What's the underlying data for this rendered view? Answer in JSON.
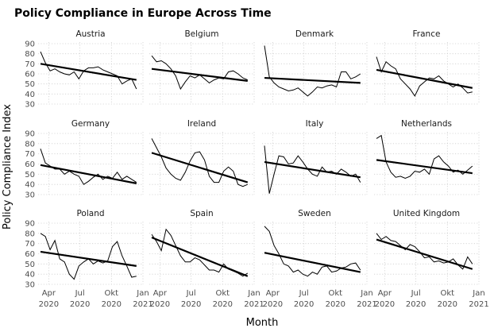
{
  "chart_data": {
    "type": "line",
    "title": "Policy Compliance in Europe Across Time",
    "xlabel": "Month",
    "ylabel": "Policy Compliance Index",
    "ylim": [
      30,
      90
    ],
    "yticks": [
      30,
      40,
      50,
      60,
      70,
      80,
      90
    ],
    "x_domain": [
      "2020-03-01",
      "2021-01-01"
    ],
    "xticks": [
      {
        "date": "2020-04-01",
        "label": [
          "Apr",
          "2020"
        ]
      },
      {
        "date": "2020-07-01",
        "label": [
          "Jul",
          "2020"
        ]
      },
      {
        "date": "2020-10-01",
        "label": [
          "Okt",
          "2020"
        ]
      },
      {
        "date": "2021-01-01",
        "label": [
          "Jan",
          "2021"
        ]
      }
    ],
    "grid": true,
    "x": [
      "2020-03-08",
      "2020-03-22",
      "2020-04-05",
      "2020-04-19",
      "2020-05-03",
      "2020-05-17",
      "2020-05-31",
      "2020-06-14",
      "2020-06-28",
      "2020-07-12",
      "2020-07-26",
      "2020-08-09",
      "2020-08-23",
      "2020-09-06",
      "2020-09-20",
      "2020-10-04",
      "2020-10-18",
      "2020-11-01",
      "2020-11-15",
      "2020-11-29",
      "2020-12-13"
    ],
    "series": [
      {
        "name": "Austria",
        "values": [
          82,
          71,
          63,
          65,
          62,
          60,
          59,
          62,
          55,
          63,
          66,
          66,
          67,
          64,
          62,
          60,
          58,
          50,
          53,
          55,
          45
        ],
        "trend": [
          70,
          54
        ]
      },
      {
        "name": "Belgium",
        "values": [
          78,
          72,
          73,
          70,
          65,
          58,
          45,
          52,
          58,
          56,
          59,
          55,
          51,
          54,
          56,
          55,
          62,
          63,
          60,
          56,
          54
        ],
        "trend": [
          65,
          53
        ]
      },
      {
        "name": "Denmark",
        "values": [
          88,
          57,
          51,
          47,
          45,
          43,
          44,
          46,
          42,
          38,
          42,
          47,
          46,
          48,
          49,
          47,
          62,
          62,
          55,
          57,
          60
        ],
        "trend": [
          56,
          51
        ]
      },
      {
        "name": "France",
        "values": [
          77,
          62,
          72,
          68,
          65,
          55,
          50,
          45,
          38,
          48,
          52,
          56,
          55,
          58,
          53,
          50,
          47,
          50,
          46,
          41,
          42
        ],
        "trend": [
          64,
          46
        ]
      },
      {
        "name": "Germany",
        "values": [
          75,
          61,
          58,
          55,
          55,
          50,
          53,
          50,
          48,
          40,
          43,
          47,
          50,
          45,
          48,
          46,
          52,
          45,
          48,
          45,
          42
        ],
        "trend": [
          59,
          41
        ]
      },
      {
        "name": "Ireland",
        "values": [
          85,
          76,
          67,
          56,
          50,
          46,
          44,
          52,
          63,
          71,
          72,
          64,
          48,
          42,
          42,
          53,
          57,
          53,
          40,
          38,
          40
        ],
        "trend": [
          71,
          42
        ]
      },
      {
        "name": "Italy",
        "values": [
          78,
          31,
          50,
          68,
          67,
          60,
          61,
          68,
          62,
          55,
          50,
          48,
          57,
          52,
          53,
          50,
          55,
          52,
          48,
          50,
          42
        ],
        "trend": [
          62,
          47
        ]
      },
      {
        "name": "Netherlands",
        "values": [
          85,
          88,
          62,
          52,
          47,
          48,
          46,
          48,
          53,
          52,
          55,
          50,
          65,
          68,
          62,
          58,
          52,
          54,
          50,
          54,
          58
        ],
        "trend": [
          64,
          51
        ]
      },
      {
        "name": "Poland",
        "values": [
          80,
          77,
          64,
          73,
          55,
          52,
          40,
          35,
          48,
          52,
          55,
          50,
          53,
          51,
          53,
          67,
          72,
          58,
          48,
          37,
          38
        ],
        "trend": [
          62,
          48
        ]
      },
      {
        "name": "Spain",
        "values": [
          79,
          72,
          63,
          84,
          78,
          68,
          58,
          52,
          52,
          56,
          54,
          49,
          44,
          44,
          42,
          50,
          45,
          43,
          41,
          38,
          41
        ],
        "trend": [
          76,
          38
        ]
      },
      {
        "name": "Sweden",
        "values": [
          87,
          82,
          68,
          60,
          50,
          48,
          42,
          44,
          40,
          38,
          42,
          40,
          47,
          48,
          42,
          43,
          46,
          47,
          50,
          51,
          44
        ],
        "trend": [
          61,
          42
        ]
      },
      {
        "name": "United Kingdom",
        "values": [
          80,
          74,
          77,
          73,
          72,
          68,
          64,
          69,
          67,
          62,
          56,
          57,
          52,
          53,
          51,
          52,
          55,
          49,
          45,
          57,
          50
        ],
        "trend": [
          74,
          45
        ]
      }
    ]
  }
}
